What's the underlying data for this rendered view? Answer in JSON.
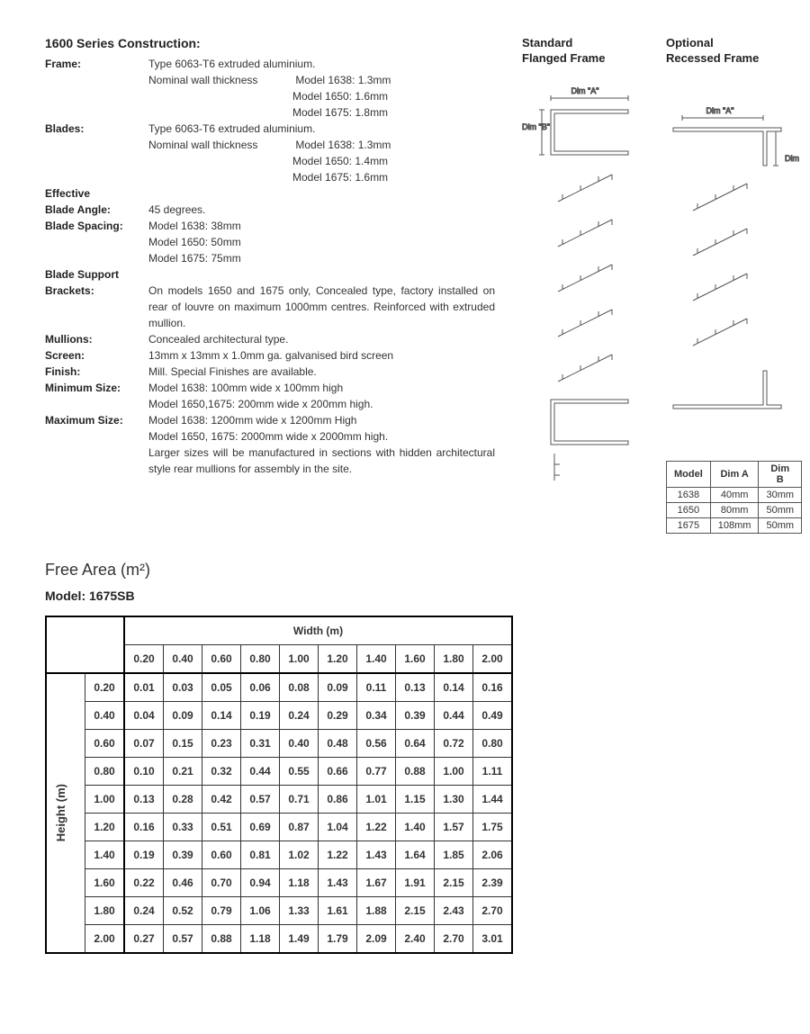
{
  "construction": {
    "title": "1600 Series Construction:",
    "frame": {
      "label": "Frame:",
      "type": "Type 6063-T6 extruded aluminium.",
      "wall_label": "Nominal wall thickness",
      "models": [
        "Model 1638: 1.3mm",
        "Model 1650: 1.6mm",
        "Model 1675: 1.8mm"
      ]
    },
    "blades": {
      "label": "Blades:",
      "type": "Type 6063-T6 extruded aluminium.",
      "wall_label": "Nominal wall thickness",
      "models": [
        "Model 1638: 1.3mm",
        "Model 1650: 1.4mm",
        "Model 1675: 1.6mm"
      ]
    },
    "blade_angle": {
      "label1": "Effective",
      "label2": "Blade Angle:",
      "value": "45 degrees."
    },
    "blade_spacing": {
      "label": "Blade Spacing:",
      "models": [
        "Model 1638: 38mm",
        "Model 1650: 50mm",
        "Model 1675: 75mm"
      ]
    },
    "brackets": {
      "label1": "Blade Support",
      "label2": "Brackets:",
      "value": "On models 1650 and 1675 only, Concealed type, factory installed on rear of louvre on maximum 1000mm centres. Reinforced with extruded mullion."
    },
    "mullions": {
      "label": "Mullions:",
      "value": "Concealed architectural type."
    },
    "screen": {
      "label": "Screen:",
      "value": "13mm x 13mm x 1.0mm ga. galvanised bird screen"
    },
    "finish": {
      "label": "Finish:",
      "value": "Mill. Special Finishes are available."
    },
    "min_size": {
      "label": "Minimum Size:",
      "lines": [
        "Model 1638: 100mm wide x 100mm high",
        "Model 1650,1675: 200mm wide x 200mm high."
      ]
    },
    "max_size": {
      "label": "Maximum Size:",
      "lines": [
        "Model 1638: 1200mm wide x 1200mm High",
        "Model 1650, 1675: 2000mm wide x 2000mm high.",
        "Larger sizes will be manufactured in sections with hidden architectural style rear mullions for assembly in the site."
      ]
    }
  },
  "diagrams": {
    "standard": {
      "title": "Standard\nFlanged Frame",
      "dim_a": "Dim \"A\"",
      "dim_b": "Dim \"B\""
    },
    "optional": {
      "title": "Optional\nRecessed Frame",
      "dim_a": "Dim \"A\"",
      "dim_b": "Dim \"B\""
    },
    "stroke_color": "#555555",
    "stroke_width": 1
  },
  "dim_table": {
    "headers": [
      "Model",
      "Dim A",
      "Dim B"
    ],
    "rows": [
      [
        "1638",
        "40mm",
        "30mm"
      ],
      [
        "1650",
        "80mm",
        "50mm"
      ],
      [
        "1675",
        "108mm",
        "50mm"
      ]
    ]
  },
  "free_area": {
    "title": "Free Area (m²)",
    "model_label": "Model: 1675SB",
    "width_label": "Width (m)",
    "height_label": "Height (m)",
    "widths": [
      "0.20",
      "0.40",
      "0.60",
      "0.80",
      "1.00",
      "1.20",
      "1.40",
      "1.60",
      "1.80",
      "2.00"
    ],
    "heights": [
      "0.20",
      "0.40",
      "0.60",
      "0.80",
      "1.00",
      "1.20",
      "1.40",
      "1.60",
      "1.80",
      "2.00"
    ],
    "values": [
      [
        "0.01",
        "0.03",
        "0.05",
        "0.06",
        "0.08",
        "0.09",
        "0.11",
        "0.13",
        "0.14",
        "0.16"
      ],
      [
        "0.04",
        "0.09",
        "0.14",
        "0.19",
        "0.24",
        "0.29",
        "0.34",
        "0.39",
        "0.44",
        "0.49"
      ],
      [
        "0.07",
        "0.15",
        "0.23",
        "0.31",
        "0.40",
        "0.48",
        "0.56",
        "0.64",
        "0.72",
        "0.80"
      ],
      [
        "0.10",
        "0.21",
        "0.32",
        "0.44",
        "0.55",
        "0.66",
        "0.77",
        "0.88",
        "1.00",
        "1.11"
      ],
      [
        "0.13",
        "0.28",
        "0.42",
        "0.57",
        "0.71",
        "0.86",
        "1.01",
        "1.15",
        "1.30",
        "1.44"
      ],
      [
        "0.16",
        "0.33",
        "0.51",
        "0.69",
        "0.87",
        "1.04",
        "1.22",
        "1.40",
        "1.57",
        "1.75"
      ],
      [
        "0.19",
        "0.39",
        "0.60",
        "0.81",
        "1.02",
        "1.22",
        "1.43",
        "1.64",
        "1.85",
        "2.06"
      ],
      [
        "0.22",
        "0.46",
        "0.70",
        "0.94",
        "1.18",
        "1.43",
        "1.67",
        "1.91",
        "2.15",
        "2.39"
      ],
      [
        "0.24",
        "0.52",
        "0.79",
        "1.06",
        "1.33",
        "1.61",
        "1.88",
        "2.15",
        "2.43",
        "2.70"
      ],
      [
        "0.27",
        "0.57",
        "0.88",
        "1.18",
        "1.49",
        "1.79",
        "2.09",
        "2.40",
        "2.70",
        "3.01"
      ]
    ]
  },
  "colors": {
    "text": "#333333",
    "heading": "#222222",
    "border": "#333333",
    "background": "#ffffff"
  },
  "typography": {
    "body_fontsize": 12,
    "h2_fontsize": 18,
    "h3_fontsize": 14,
    "table_fontsize": 12,
    "font_family": "Arial, Helvetica, sans-serif"
  }
}
